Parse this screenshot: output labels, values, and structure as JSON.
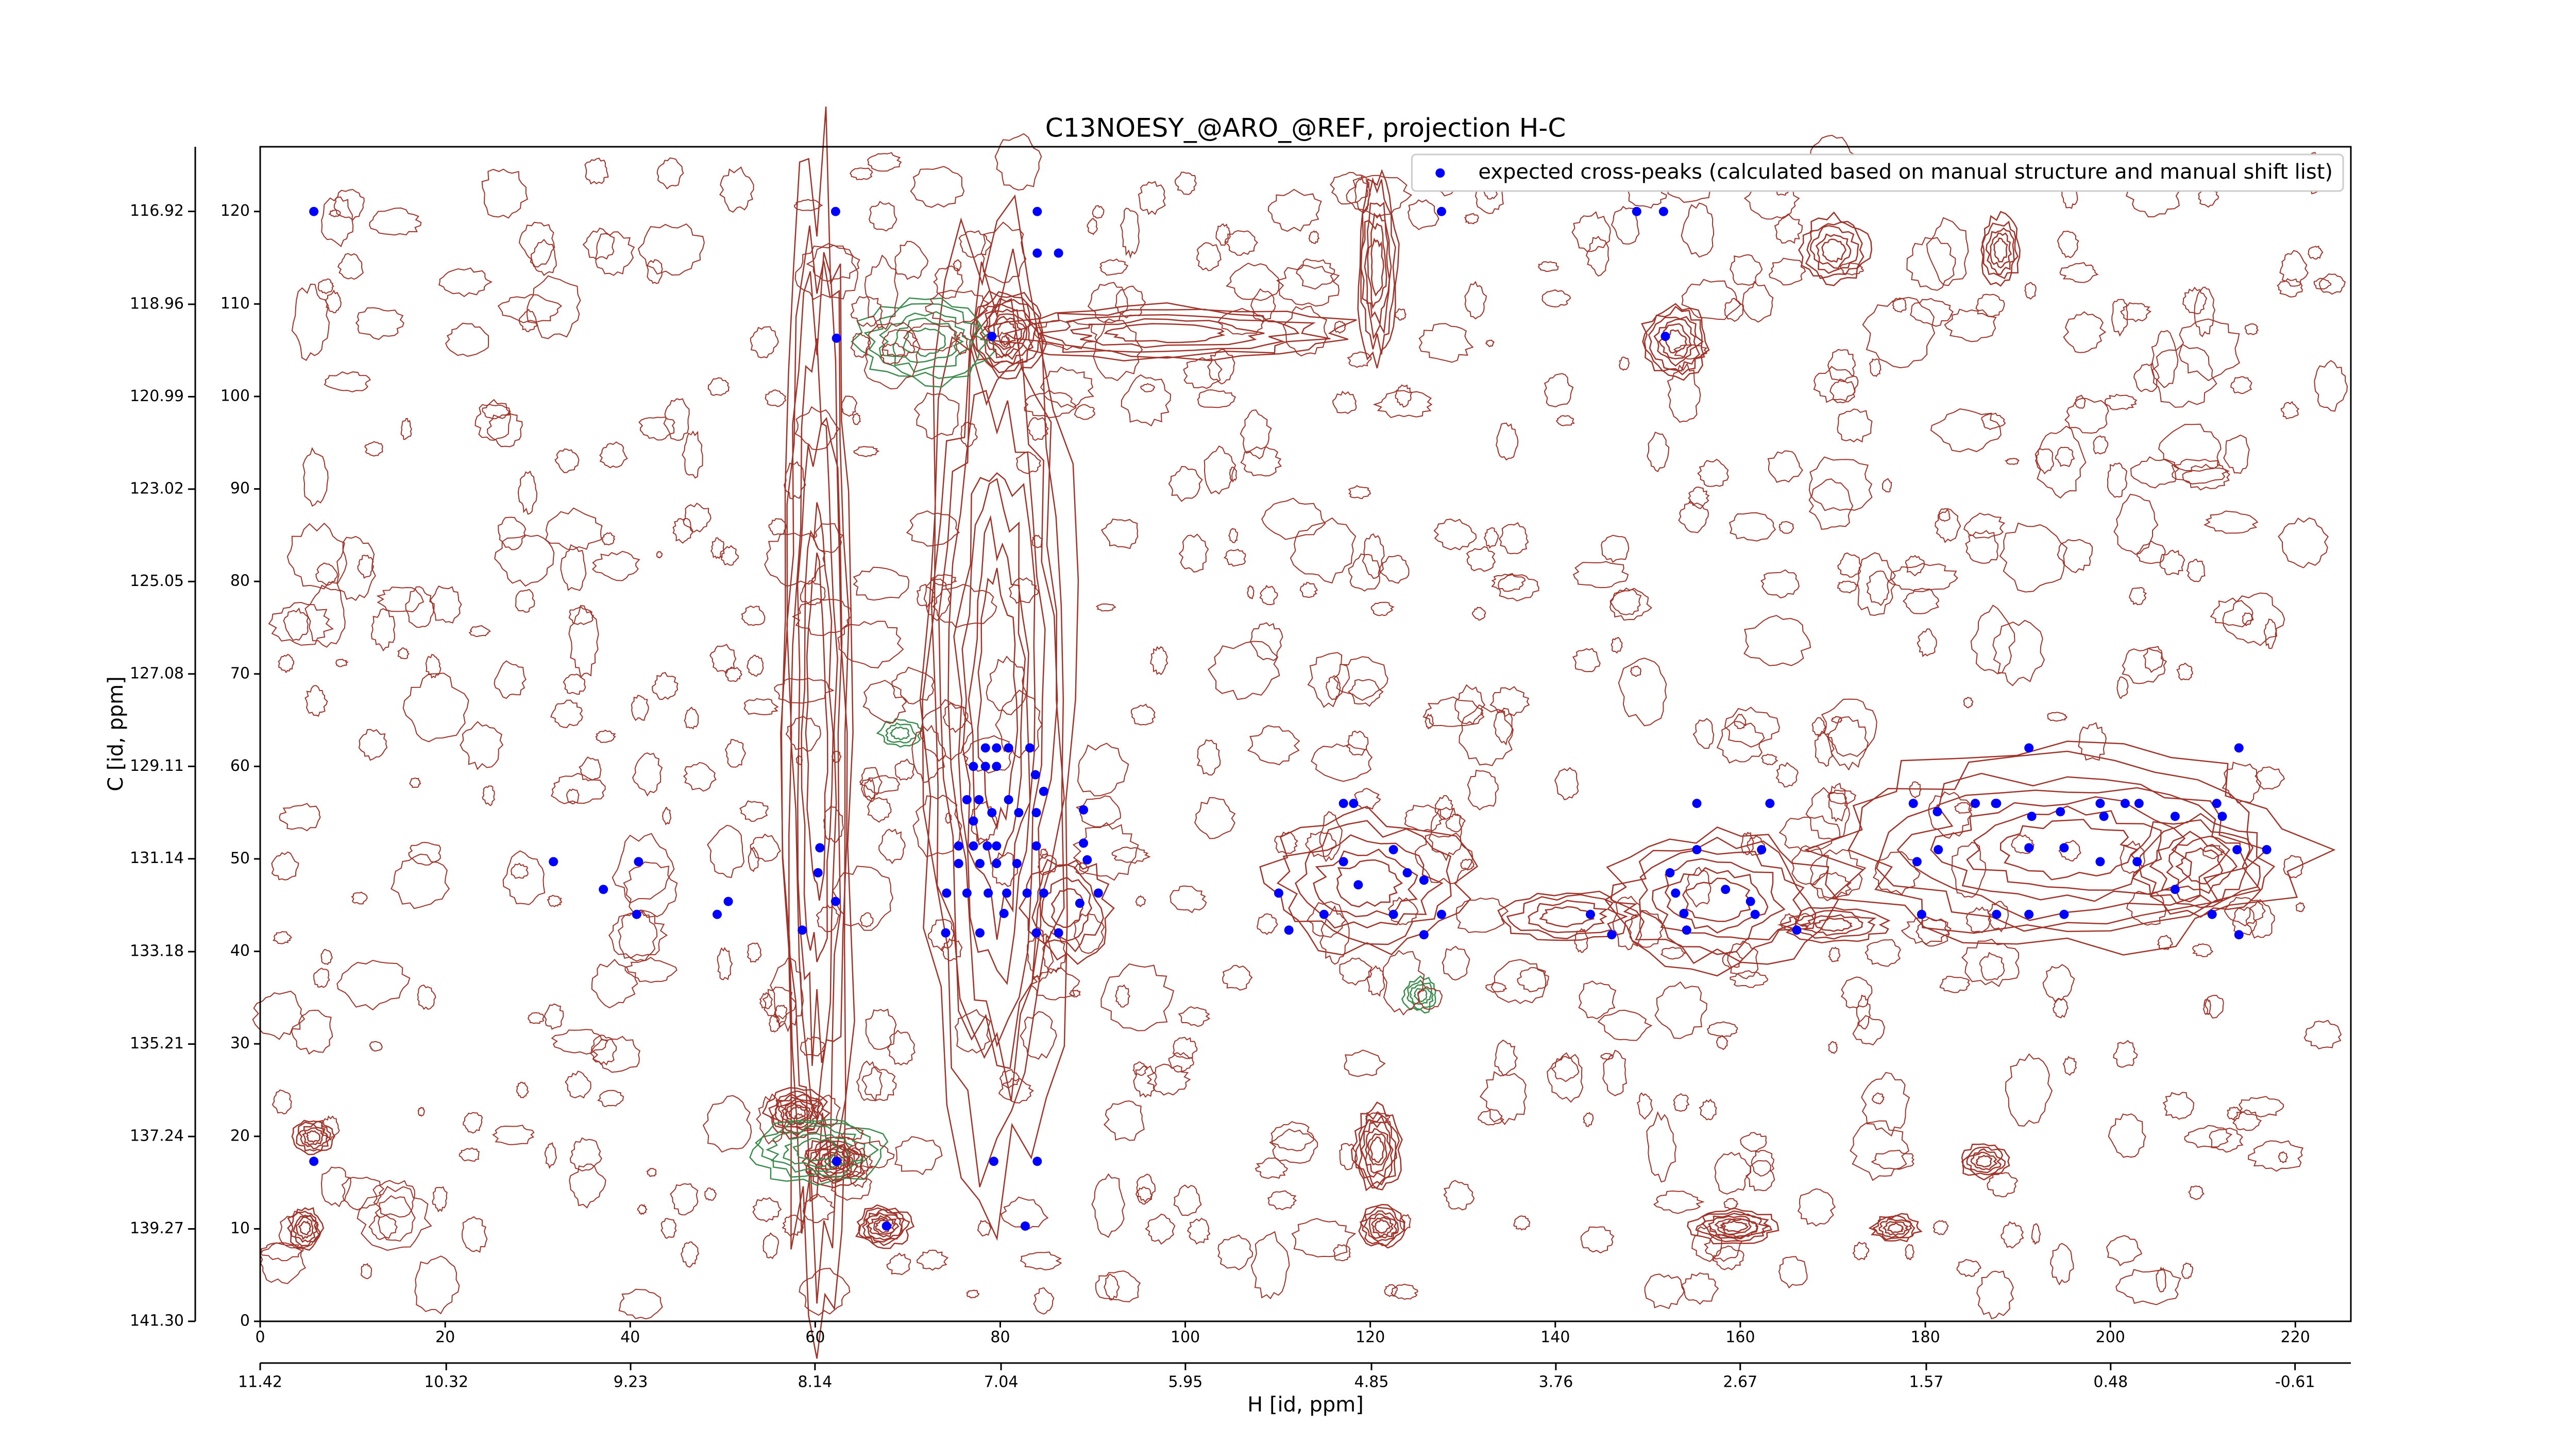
{
  "chart_data": {
    "type": "scatter",
    "title": "C13NOESY_@ARO_@REF, projection H-C",
    "x_label": "H [id, ppm]",
    "y_label": "C [id, ppm]",
    "xlim": [
      0,
      226
    ],
    "ylim": [
      0,
      127
    ],
    "xticks": [
      0,
      20,
      40,
      60,
      80,
      100,
      120,
      140,
      160,
      180,
      200,
      220
    ],
    "yticks": [
      0,
      10,
      20,
      30,
      40,
      50,
      60,
      70,
      80,
      90,
      100,
      110,
      120
    ],
    "x2lim": [
      11.42,
      -0.94
    ],
    "x2ticks": [
      11.42,
      10.32,
      9.23,
      8.14,
      7.04,
      5.95,
      4.85,
      3.76,
      2.67,
      1.57,
      0.48,
      -0.61
    ],
    "y2lim": [
      141.3,
      115.5
    ],
    "y2ticks": [
      116.92,
      118.96,
      120.99,
      123.02,
      125.05,
      127.08,
      129.11,
      131.14,
      133.18,
      135.21,
      137.24,
      139.27,
      {
        "value": 141.3,
        "label": "141.30"
      }
    ],
    "legend": "upper right",
    "x": [
      5.8,
      62.2,
      84,
      127.7,
      148.8,
      151.7,
      84,
      86.3,
      62.3,
      79.1,
      151.9,
      5.8,
      62.3,
      79.3,
      84,
      67.7,
      82.7,
      31.7,
      37.1,
      40.9,
      40.7,
      50.6,
      49.4,
      58.6,
      60.5,
      60.3,
      62.2,
      78.4,
      79.6,
      80.9,
      77.1,
      78.4,
      79.6,
      83.2,
      76.4,
      77.7,
      79.1,
      80.9,
      82.0,
      83.9,
      77.1,
      75.5,
      77.1,
      78.6,
      79.6,
      81.8,
      75.5,
      77.8,
      79.6,
      83.9,
      74.2,
      76.4,
      78.7,
      80.7,
      82.9,
      84.7,
      89.0,
      89.0,
      89.4,
      90.6,
      88.6,
      74.1,
      77.8,
      80.4,
      83.9,
      86.3,
      83.8,
      84.7,
      110.1,
      111.2,
      115.0,
      117.1,
      118.2,
      117.1,
      118.7,
      122.5,
      124.0,
      125.8,
      122.5,
      125.8,
      127.7,
      143.8,
      146.1,
      152.4,
      155.3,
      155.3,
      153.0,
      153.9,
      154.2,
      158.4,
      161.1,
      162.3,
      161.6,
      163.2,
      166.1,
      178.7,
      179.1,
      179.6,
      181.3,
      181.4,
      185.4,
      187.6,
      187.7,
      191.2,
      191.2,
      191.2,
      195.0,
      195.0,
      198.9,
      198.9,
      201.6,
      203.1,
      202.9,
      207.0,
      207.0,
      211.0,
      211.5,
      212.1,
      213.7,
      213.9,
      213.9,
      216.9,
      191.5,
      194.6,
      187.7,
      199.3
    ],
    "series": [
      {
        "name": "expected cross-peaks (calculated based on manual structure and manual shift list)",
        "color": "#0000ff",
        "values": [
          120,
          120,
          120,
          120,
          120,
          120,
          115.5,
          115.5,
          106.3,
          106.5,
          106.5,
          17.3,
          17.3,
          17.3,
          17.3,
          10.3,
          10.3,
          49.7,
          46.7,
          49.7,
          44.0,
          45.4,
          44.0,
          42.3,
          51.2,
          48.5,
          45.4,
          62.0,
          62.0,
          62.0,
          60.0,
          60.0,
          60.0,
          62.0,
          56.4,
          56.4,
          55.0,
          56.4,
          55.0,
          55.0,
          54.1,
          51.4,
          51.4,
          51.4,
          51.4,
          49.5,
          49.5,
          49.5,
          49.5,
          51.4,
          46.3,
          46.3,
          46.3,
          46.3,
          46.3,
          46.3,
          55.3,
          51.7,
          49.9,
          46.3,
          45.2,
          42.0,
          42.0,
          44.1,
          42.0,
          42.0,
          59.1,
          57.3,
          46.3,
          42.3,
          44.0,
          56.0,
          56.0,
          49.7,
          47.2,
          51.0,
          48.5,
          47.7,
          44.0,
          41.8,
          44.0,
          44.0,
          41.8,
          48.5,
          56.0,
          51.0,
          46.3,
          44.1,
          42.3,
          46.7,
          45.4,
          51.0,
          44.0,
          56.0,
          42.3,
          56.0,
          49.7,
          44.0,
          55.1,
          51.0,
          56.0,
          56.0,
          44.0,
          62.0,
          51.2,
          44.0,
          51.2,
          44.0,
          56.0,
          49.7,
          56.0,
          56.0,
          49.7,
          54.6,
          46.7,
          44.0,
          56.0,
          54.6,
          51.0,
          62.0,
          41.8,
          51.0,
          54.6,
          55.1,
          56.0,
          54.6
        ]
      }
    ]
  }
}
